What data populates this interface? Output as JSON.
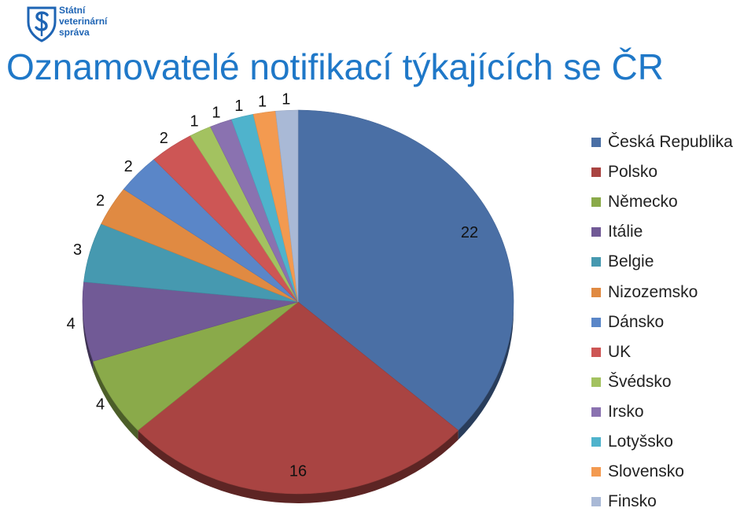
{
  "logo": {
    "line1": "Státní",
    "line2": "veterinární",
    "line3": "správa"
  },
  "title": "Oznamovatelé notifikací týkajících se ČR",
  "chart_data": {
    "type": "pie",
    "title": "Oznamovatelé notifikací týkajících se ČR",
    "legend_position": "right",
    "slices": [
      {
        "label": "Česká Republika",
        "value": 22,
        "color": "#4a6fa5"
      },
      {
        "label": "Polsko",
        "value": 16,
        "color": "#a94442"
      },
      {
        "label": "Německo",
        "value": 4,
        "color": "#8aaa4a"
      },
      {
        "label": "Itálie",
        "value": 4,
        "color": "#715a96"
      },
      {
        "label": "Belgie",
        "value": 3,
        "color": "#4699b0"
      },
      {
        "label": "Nizozemsko",
        "value": 2,
        "color": "#e08a42"
      },
      {
        "label": "Dánsko",
        "value": 2,
        "color": "#5a86c8"
      },
      {
        "label": "UK",
        "value": 2,
        "color": "#cd5655"
      },
      {
        "label": "Švédsko",
        "value": 1,
        "color": "#a3c260"
      },
      {
        "label": "Irsko",
        "value": 1,
        "color": "#8a72b0"
      },
      {
        "label": "Lotyšsko",
        "value": 1,
        "color": "#4fb3cc"
      },
      {
        "label": "Slovensko",
        "value": 1,
        "color": "#f39a50"
      },
      {
        "label": "Finsko",
        "value": 1,
        "color": "#a9b9d6"
      }
    ]
  }
}
